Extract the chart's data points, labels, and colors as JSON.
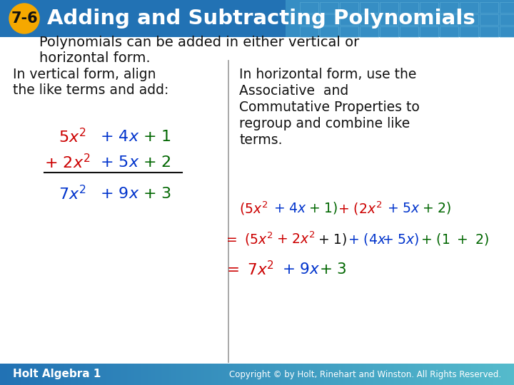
{
  "title": "Adding and Subtracting Polynomials",
  "lesson": "7-6",
  "header_color": "#2272B4",
  "header_color2": "#4AAAD4",
  "badge_color": "#F5A800",
  "body_bg": "#FFFFFF",
  "footer_color1": "#2272B4",
  "footer_color2": "#55BBCC",
  "red": "#CC0000",
  "blue": "#0033CC",
  "green": "#006600",
  "black": "#111111",
  "gray_line": "#999999",
  "footer_text_color": "#FFFFFF",
  "intro_text1": "Polynomials can be added in either vertical or",
  "intro_text2": "horizontal form.",
  "left_header1": "In vertical form, align",
  "left_header2": "the like terms and add:",
  "right_header1": "In horizontal form, use the",
  "right_header2": "Associative  and",
  "right_header3": "Commutative Properties to",
  "right_header4": "regroup and combine like",
  "right_header5": "terms.",
  "footer_left": "Holt Algebra 1",
  "footer_right": "Copyright © by Holt, Rinehart and Winston. All Rights Reserved."
}
